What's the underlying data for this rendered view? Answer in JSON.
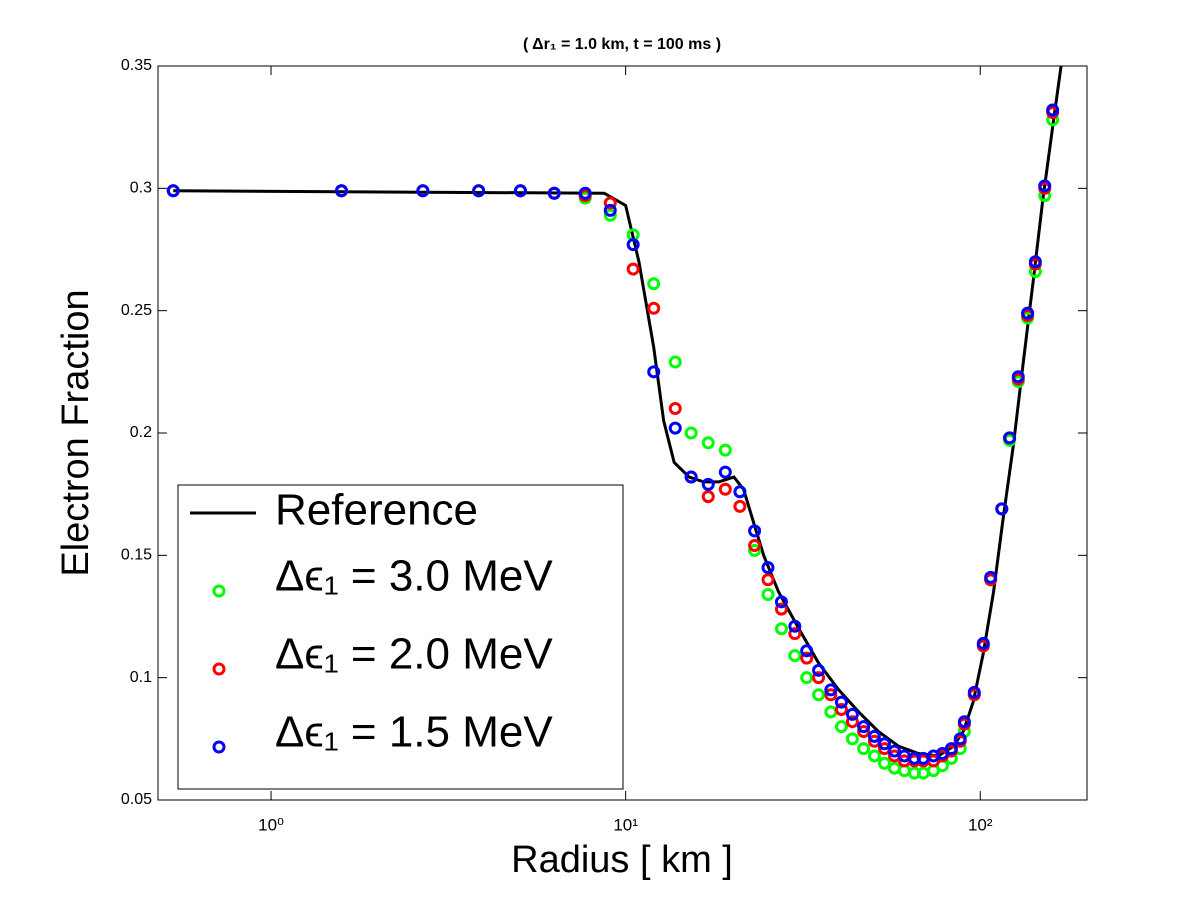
{
  "chart_data": {
    "type": "scatter-line",
    "title": "( Δr₁ = 1.0 km, t = 100 ms )",
    "x_label": "Radius [ km ]",
    "y_label": "Electron Fraction",
    "x_scale": "log",
    "xlim": [
      0.48,
      200
    ],
    "ylim": [
      0.05,
      0.35
    ],
    "xticks": [
      {
        "value": 1,
        "label": "10⁰"
      },
      {
        "value": 10,
        "label": "10¹"
      },
      {
        "value": 100,
        "label": "10²"
      }
    ],
    "yticks": [
      0.05,
      0.1,
      0.15,
      0.2,
      0.25,
      0.3,
      0.35
    ],
    "legend": "lower left",
    "series": [
      {
        "name": "Reference",
        "kind": "line",
        "color": "#000000",
        "x": [
          0.53,
          8.7,
          10.0,
          10.9,
          12.0,
          12.8,
          13.7,
          15.1,
          16.6,
          18.3,
          20.2,
          21.5,
          23.0,
          24.5,
          27.0,
          30.8,
          35.0,
          39.9,
          45.4,
          51.6,
          58.8,
          66.9,
          76.2,
          84.0,
          89.6,
          95.5,
          102,
          109,
          116,
          124,
          132,
          141,
          150,
          160,
          169
        ],
        "values": [
          0.299,
          0.298,
          0.293,
          0.27,
          0.235,
          0.205,
          0.188,
          0.182,
          0.18,
          0.18,
          0.182,
          0.177,
          0.163,
          0.15,
          0.135,
          0.12,
          0.106,
          0.095,
          0.086,
          0.078,
          0.072,
          0.069,
          0.068,
          0.072,
          0.078,
          0.09,
          0.11,
          0.135,
          0.165,
          0.195,
          0.228,
          0.262,
          0.295,
          0.325,
          0.35
        ]
      },
      {
        "name": "Δϵ₁ = 3.0 MeV",
        "kind": "marker",
        "color": "#00ff00",
        "x": [
          0.53,
          1.58,
          2.68,
          3.85,
          5.05,
          6.29,
          7.69,
          9.05,
          10.5,
          12.0,
          13.8,
          15.3,
          17.1,
          19.1,
          21.0,
          23.1,
          25.2,
          27.5,
          30.0,
          32.4,
          35.0,
          37.9,
          40.6,
          43.6,
          46.9,
          50.3,
          53.7,
          57.3,
          61.1,
          65.2,
          69.1,
          73.8,
          78.2,
          82.9,
          87.8,
          90.2,
          96.2,
          102,
          107,
          115,
          121,
          128,
          136,
          143,
          152,
          160
        ],
        "values": [
          0.299,
          0.299,
          0.299,
          0.299,
          0.299,
          0.298,
          0.296,
          0.289,
          0.281,
          0.261,
          0.229,
          0.2,
          0.196,
          0.193,
          0.176,
          0.152,
          0.134,
          0.12,
          0.109,
          0.1,
          0.093,
          0.086,
          0.08,
          0.075,
          0.071,
          0.068,
          0.065,
          0.063,
          0.062,
          0.061,
          0.061,
          0.062,
          0.064,
          0.067,
          0.071,
          0.078,
          0.093,
          0.113,
          0.14,
          0.169,
          0.197,
          0.221,
          0.247,
          0.266,
          0.297,
          0.328
        ]
      },
      {
        "name": "Δϵ₁ = 2.0 MeV",
        "kind": "marker",
        "color": "#ff0000",
        "x": [
          0.53,
          1.58,
          2.68,
          3.85,
          5.05,
          6.29,
          7.69,
          9.05,
          10.5,
          12.0,
          13.8,
          15.3,
          17.1,
          19.1,
          21.0,
          23.1,
          25.2,
          27.5,
          30.0,
          32.4,
          35.0,
          37.9,
          40.6,
          43.6,
          46.9,
          50.3,
          53.7,
          57.3,
          61.1,
          65.2,
          69.1,
          73.8,
          78.2,
          82.9,
          87.8,
          90.2,
          96.2,
          102,
          107,
          115,
          121,
          128,
          136,
          143,
          152,
          160
        ],
        "values": [
          0.299,
          0.299,
          0.299,
          0.299,
          0.299,
          0.298,
          0.297,
          0.294,
          0.267,
          0.251,
          0.21,
          0.182,
          0.174,
          0.177,
          0.17,
          0.154,
          0.14,
          0.128,
          0.118,
          0.108,
          0.1,
          0.093,
          0.087,
          0.082,
          0.078,
          0.074,
          0.071,
          0.068,
          0.066,
          0.066,
          0.066,
          0.066,
          0.068,
          0.07,
          0.074,
          0.081,
          0.093,
          0.113,
          0.14,
          0.169,
          0.198,
          0.222,
          0.248,
          0.269,
          0.3,
          0.331
        ]
      },
      {
        "name": "Δϵ₁ = 1.5 MeV",
        "kind": "marker",
        "color": "#0000ff",
        "x": [
          0.53,
          1.58,
          2.68,
          3.85,
          5.05,
          6.29,
          7.69,
          9.05,
          10.5,
          12.0,
          13.8,
          15.3,
          17.1,
          19.1,
          21.0,
          23.1,
          25.2,
          27.5,
          30.0,
          32.4,
          35.0,
          37.9,
          40.6,
          43.6,
          46.9,
          50.3,
          53.7,
          57.3,
          61.1,
          65.2,
          69.1,
          73.8,
          78.2,
          82.9,
          87.8,
          90.2,
          96.2,
          102,
          107,
          115,
          121,
          128,
          136,
          143,
          152,
          160
        ],
        "values": [
          0.299,
          0.299,
          0.299,
          0.299,
          0.299,
          0.298,
          0.298,
          0.291,
          0.277,
          0.225,
          0.202,
          0.182,
          0.179,
          0.184,
          0.176,
          0.16,
          0.145,
          0.131,
          0.121,
          0.111,
          0.103,
          0.095,
          0.09,
          0.085,
          0.08,
          0.076,
          0.073,
          0.07,
          0.068,
          0.067,
          0.067,
          0.068,
          0.069,
          0.071,
          0.075,
          0.082,
          0.094,
          0.114,
          0.141,
          0.169,
          0.198,
          0.223,
          0.249,
          0.27,
          0.301,
          0.332
        ]
      }
    ]
  }
}
